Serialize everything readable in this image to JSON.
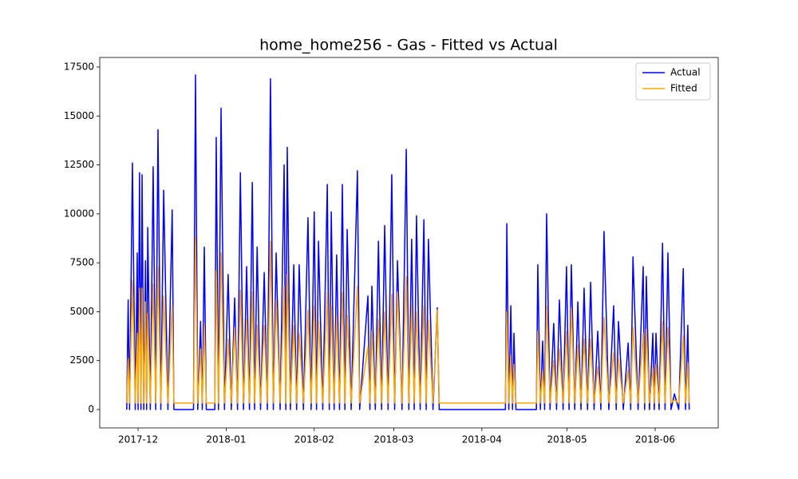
{
  "chart_data": {
    "type": "line",
    "title": "home_home256 - Gas - Fitted vs Actual",
    "x": [
      -4.0,
      -3.5,
      -3.0,
      -2.0,
      -1.0,
      -0.3,
      0.0,
      0.5,
      1.0,
      1.4,
      2.0,
      2.6,
      3.0,
      3.4,
      4.3,
      5.3,
      6.2,
      7.0,
      8.0,
      9.0,
      10.5,
      12.0,
      12.6,
      19.5,
      20.2,
      21.0,
      22.0,
      22.6,
      23.3,
      24.0,
      27.0,
      27.5,
      28.3,
      29.2,
      30.4,
      31.7,
      32.8,
      34.0,
      35.0,
      36.0,
      37.1,
      38.2,
      39.2,
      40.2,
      41.0,
      41.9,
      43.1,
      44.4,
      45.5,
      46.6,
      47.6,
      48.6,
      50.0,
      51.4,
      52.0,
      52.5,
      53.6,
      54.8,
      55.8,
      56.7,
      58.2,
      59.8,
      60.9,
      62.0,
      62.8,
      63.5,
      65.0,
      66.6,
      67.3,
      68.0,
      69.0,
      69.9,
      70.9,
      71.9,
      72.8,
      73.6,
      75.0,
      77.2,
      78.0,
      80.9,
      81.6,
      82.3,
      83.5,
      84.6,
      85.7,
      86.8,
      88.0,
      89.3,
      90.3,
      91.3,
      92.9,
      94.4,
      95.3,
      96.3,
      97.2,
      98.0,
      99.3,
      100.6,
      101.4,
      102.2,
      103.8,
      105.3,
      106.0,
      129.3,
      129.8,
      130.5,
      131.2,
      131.8,
      132.3,
      133.0,
      140.2,
      140.7,
      141.6,
      142.4,
      143.1,
      143.8,
      145.0,
      146.3,
      147.3,
      148.3,
      149.6,
      150.8,
      151.7,
      152.5,
      153.7,
      154.8,
      155.9,
      157.0,
      158.2,
      159.3,
      160.5,
      161.8,
      162.9,
      164.0,
      165.7,
      167.4,
      168.3,
      169.1,
      170.8,
      172.5,
      173.4,
      174.2,
      176.0,
      177.8,
      178.3,
      178.9,
      180.0,
      181.2,
      181.7,
      182.3,
      183.4,
      184.6,
      185.5,
      186.5,
      187.6,
      188.8,
      190.3,
      191.9,
      192.7,
      193.5,
      194.0
    ],
    "series": [
      {
        "name": "Actual",
        "color": "#0000ff",
        "values": [
          0,
          5600,
          0,
          12600,
          0,
          8000,
          0,
          12100,
          0,
          12000,
          0,
          7600,
          0,
          9300,
          0,
          12400,
          0,
          14300,
          0,
          11200,
          0,
          10200,
          0,
          0,
          17100,
          0,
          4500,
          0,
          8300,
          0,
          0,
          13900,
          0,
          15400,
          0,
          6900,
          0,
          5700,
          0,
          12100,
          0,
          7300,
          0,
          11600,
          0,
          8300,
          0,
          7000,
          0,
          16900,
          0,
          8000,
          0,
          12500,
          0,
          13400,
          0,
          7400,
          0,
          7400,
          0,
          9800,
          0,
          10100,
          0,
          8600,
          0,
          11500,
          0,
          10100,
          0,
          7900,
          0,
          11500,
          0,
          9200,
          0,
          12200,
          0,
          5800,
          0,
          6300,
          0,
          8600,
          0,
          9400,
          0,
          12000,
          0,
          7600,
          0,
          13300,
          0,
          8700,
          0,
          9900,
          0,
          9700,
          0,
          8700,
          0,
          5200,
          0,
          0,
          9500,
          0,
          5300,
          0,
          3900,
          0,
          0,
          7400,
          0,
          3500,
          0,
          10000,
          0,
          4400,
          0,
          5600,
          0,
          7300,
          0,
          7400,
          0,
          5500,
          0,
          6200,
          0,
          6500,
          0,
          4000,
          0,
          9100,
          0,
          5300,
          0,
          4500,
          0,
          3400,
          0,
          7800,
          0,
          7300,
          0,
          6800,
          0,
          3900,
          0,
          3900,
          0,
          8500,
          0,
          8000,
          0,
          800,
          0,
          7200,
          0,
          4300,
          0
        ]
      },
      {
        "name": "Fitted",
        "color": "#ffa500",
        "values": [
          330,
          2600,
          330,
          6600,
          330,
          3900,
          330,
          6200,
          330,
          6200,
          330,
          5500,
          330,
          4900,
          330,
          6400,
          330,
          7300,
          330,
          5800,
          330,
          5300,
          330,
          330,
          8800,
          330,
          3100,
          330,
          4400,
          330,
          330,
          7100,
          330,
          8000,
          330,
          3600,
          330,
          4200,
          330,
          6100,
          330,
          4600,
          330,
          6000,
          330,
          4300,
          330,
          4300,
          330,
          8600,
          330,
          5600,
          330,
          6300,
          330,
          6900,
          330,
          4300,
          330,
          3900,
          330,
          5100,
          330,
          5300,
          330,
          4500,
          330,
          6000,
          330,
          5300,
          330,
          4800,
          330,
          6000,
          330,
          4800,
          330,
          6300,
          330,
          3200,
          330,
          4000,
          330,
          4600,
          330,
          5000,
          330,
          5900,
          330,
          6000,
          330,
          6800,
          330,
          5300,
          330,
          5000,
          330,
          5300,
          330,
          4600,
          330,
          5100,
          330,
          330,
          5000,
          330,
          2800,
          330,
          2300,
          330,
          330,
          4000,
          330,
          2000,
          330,
          5300,
          330,
          2500,
          330,
          3100,
          330,
          4000,
          330,
          5200,
          330,
          3300,
          330,
          3600,
          330,
          3600,
          330,
          2200,
          330,
          4700,
          330,
          2900,
          330,
          2600,
          330,
          2000,
          330,
          4200,
          330,
          3900,
          330,
          4100,
          330,
          2100,
          330,
          2300,
          330,
          4500,
          330,
          4200,
          330,
          500,
          330,
          3800,
          330,
          2400,
          330
        ]
      }
    ],
    "xlim": [
      -13.5,
      204.2
    ],
    "xticks": [
      {
        "value": 0,
        "label": "2017-12"
      },
      {
        "value": 31,
        "label": "2018-01"
      },
      {
        "value": 62,
        "label": "2018-02"
      },
      {
        "value": 90,
        "label": "2018-03"
      },
      {
        "value": 121,
        "label": "2018-04"
      },
      {
        "value": 151,
        "label": "2018-05"
      },
      {
        "value": 182,
        "label": "2018-06"
      }
    ],
    "ylim": [
      -940,
      17990
    ],
    "yticks": [
      0,
      2500,
      5000,
      7500,
      10000,
      12500,
      15000,
      17500
    ],
    "legend": "upper right"
  }
}
